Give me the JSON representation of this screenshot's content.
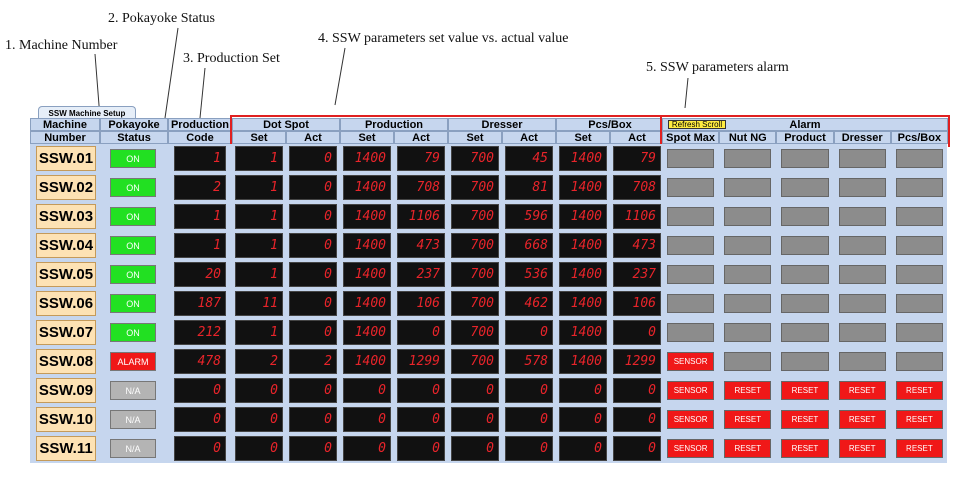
{
  "annotations": [
    "1. Machine Number",
    "2. Pokayoke Status",
    "3. Production Set",
    "4. SSW parameters set value vs. actual value",
    "5. SSW parameters alarm"
  ],
  "tab": "SSW Machine Setup",
  "headers": {
    "machine": [
      "Machine",
      "Number"
    ],
    "status": [
      "Pokayoke",
      "Status"
    ],
    "code": [
      "Production",
      "Code"
    ],
    "groups": [
      {
        "name": "Dot Spot",
        "sub": [
          "Set",
          "Act"
        ]
      },
      {
        "name": "Production",
        "sub": [
          "Set",
          "Act"
        ]
      },
      {
        "name": "Dresser",
        "sub": [
          "Set",
          "Act"
        ]
      },
      {
        "name": "Pcs/Box",
        "sub": [
          "Set",
          "Act"
        ]
      }
    ],
    "alarm": {
      "button": "Refresh Scroll",
      "title": "Alarm",
      "columns": [
        "Spot Max",
        "Nut NG",
        "Product",
        "Dresser",
        "Pcs/Box"
      ]
    }
  },
  "rows": [
    {
      "machine": "SSW.01",
      "status": "ON",
      "status_color": "#22e022",
      "code": 1,
      "values": [
        1,
        0,
        1400,
        79,
        700,
        45,
        1400,
        79
      ],
      "alarms": [
        null,
        null,
        null,
        null,
        null
      ]
    },
    {
      "machine": "SSW.02",
      "status": "ON",
      "status_color": "#22e022",
      "code": 2,
      "values": [
        1,
        0,
        1400,
        708,
        700,
        81,
        1400,
        708
      ],
      "alarms": [
        null,
        null,
        null,
        null,
        null
      ]
    },
    {
      "machine": "SSW.03",
      "status": "ON",
      "status_color": "#22e022",
      "code": 1,
      "values": [
        1,
        0,
        1400,
        1106,
        700,
        596,
        1400,
        1106
      ],
      "alarms": [
        null,
        null,
        null,
        null,
        null
      ]
    },
    {
      "machine": "SSW.04",
      "status": "ON",
      "status_color": "#22e022",
      "code": 1,
      "values": [
        1,
        0,
        1400,
        473,
        700,
        668,
        1400,
        473
      ],
      "alarms": [
        null,
        null,
        null,
        null,
        null
      ]
    },
    {
      "machine": "SSW.05",
      "status": "ON",
      "status_color": "#22e022",
      "code": 20,
      "values": [
        1,
        0,
        1400,
        237,
        700,
        536,
        1400,
        237
      ],
      "alarms": [
        null,
        null,
        null,
        null,
        null
      ]
    },
    {
      "machine": "SSW.06",
      "status": "ON",
      "status_color": "#22e022",
      "code": 187,
      "values": [
        11,
        0,
        1400,
        106,
        700,
        462,
        1400,
        106
      ],
      "alarms": [
        null,
        null,
        null,
        null,
        null
      ]
    },
    {
      "machine": "SSW.07",
      "status": "ON",
      "status_color": "#22e022",
      "code": 212,
      "values": [
        1,
        0,
        1400,
        0,
        700,
        0,
        1400,
        0
      ],
      "alarms": [
        null,
        null,
        null,
        null,
        null
      ]
    },
    {
      "machine": "SSW.08",
      "status": "ALARM",
      "status_color": "#f01818",
      "code": 478,
      "values": [
        2,
        2,
        1400,
        1299,
        700,
        578,
        1400,
        1299
      ],
      "alarms": [
        "SENSOR",
        null,
        null,
        null,
        null
      ]
    },
    {
      "machine": "SSW.09",
      "status": "N/A",
      "status_color": "#b4b4b4",
      "code": 0,
      "values": [
        0,
        0,
        0,
        0,
        0,
        0,
        0,
        0
      ],
      "alarms": [
        "SENSOR",
        "RESET",
        "RESET",
        "RESET",
        "RESET"
      ]
    },
    {
      "machine": "SSW.10",
      "status": "N/A",
      "status_color": "#b4b4b4",
      "code": 0,
      "values": [
        0,
        0,
        0,
        0,
        0,
        0,
        0,
        0
      ],
      "alarms": [
        "SENSOR",
        "RESET",
        "RESET",
        "RESET",
        "RESET"
      ]
    },
    {
      "machine": "SSW.11",
      "status": "N/A",
      "status_color": "#b4b4b4",
      "code": 0,
      "values": [
        0,
        0,
        0,
        0,
        0,
        0,
        0,
        0
      ],
      "alarms": [
        "SENSOR",
        "RESET",
        "RESET",
        "RESET",
        "RESET"
      ]
    }
  ]
}
